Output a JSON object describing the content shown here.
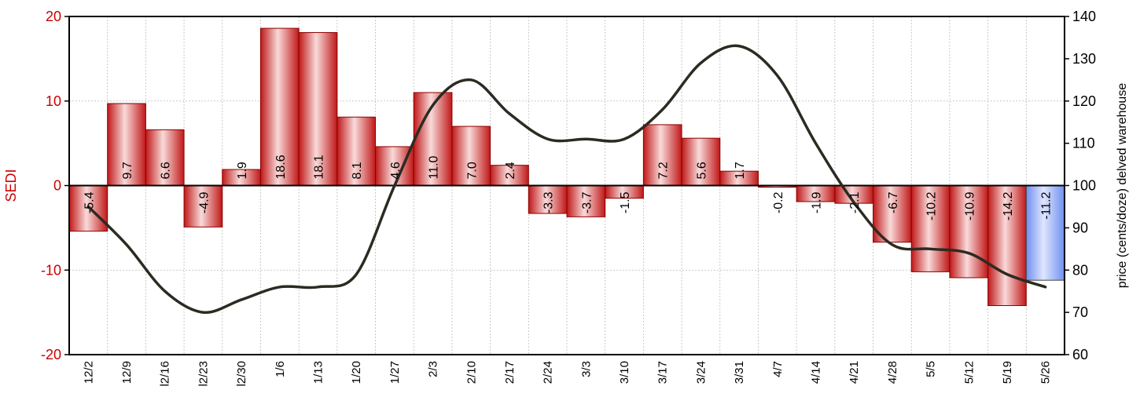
{
  "chart_data": {
    "type": "bar",
    "categories": [
      "12/2",
      "12/9",
      "12/16",
      "12/23",
      "12/30",
      "1/6",
      "1/13",
      "1/20",
      "1/27",
      "2/3",
      "2/10",
      "2/17",
      "2/24",
      "3/3",
      "3/10",
      "3/17",
      "3/24",
      "3/31",
      "4/7",
      "4/14",
      "4/21",
      "4/28",
      "5/5",
      "5/12",
      "5/19",
      "5/26"
    ],
    "tick_labels": [
      "12/2",
      "12/9",
      "l2/16",
      "l2/23",
      "l2/30",
      "1/6",
      "1/13",
      "1/20",
      "1/27",
      "2/3",
      "2/10",
      "2/17",
      "2/24",
      "3/3",
      "3/10",
      "3/17",
      "3/24",
      "3/31",
      "4/7",
      "4/14",
      "4/21",
      "4/28",
      "5/5",
      "5/12",
      "5/19",
      "5/26"
    ],
    "series": [
      {
        "axis": "left",
        "kind": "bar",
        "values": [
          -5.4,
          9.7,
          6.6,
          -4.9,
          1.9,
          18.6,
          18.1,
          8.1,
          4.6,
          11.0,
          7.0,
          2.4,
          -3.3,
          -3.7,
          -1.5,
          7.2,
          5.6,
          1.7,
          -0.2,
          -1.9,
          -2.1,
          -6.7,
          -10.2,
          -10.9,
          -14.2,
          -11.2
        ],
        "labels": [
          "-5.4",
          "9.7",
          "6.6",
          "-4.9",
          "1.9",
          "18.6",
          "18.1",
          "8.1",
          "4.6",
          "11.0",
          "7.0",
          "2.4",
          "-3.3",
          "-3.7",
          "-1.5",
          "7.2",
          "5.6",
          "1.7",
          "-0.2",
          "-1.9",
          "-2.1",
          "-6.7",
          "-10.2",
          "-10.9",
          "-14.2",
          "-11.2"
        ],
        "highlight_index": 25
      },
      {
        "axis": "right",
        "kind": "line",
        "values": [
          95,
          86,
          75,
          70,
          73,
          76,
          76,
          79,
          100,
          119,
          125,
          117,
          111,
          111,
          111,
          118,
          129,
          133,
          126,
          110,
          96,
          86,
          85,
          84,
          79,
          76
        ]
      }
    ],
    "ylabel": "SEDI",
    "y2label": "price (cents/doze) delved warehouse",
    "ylim": [
      -20,
      20
    ],
    "yticks": [
      "-20",
      "-10",
      "0",
      "10",
      "20"
    ],
    "y2lim": [
      60,
      140
    ],
    "y2ticks": [
      "60",
      "70",
      "80",
      "90",
      "100",
      "110",
      "120",
      "130",
      "140"
    ],
    "grid": true,
    "colors": {
      "bar_edge": "#8b0000",
      "bar_dark": "#c01818",
      "bar_light": "#f9dada",
      "highlight_dark": "#6f8ff0",
      "highlight_light": "#dfe6ff",
      "line": "#2b2b22",
      "left_axis_text": "#cc0000",
      "grid": "#bbbbbb"
    }
  }
}
